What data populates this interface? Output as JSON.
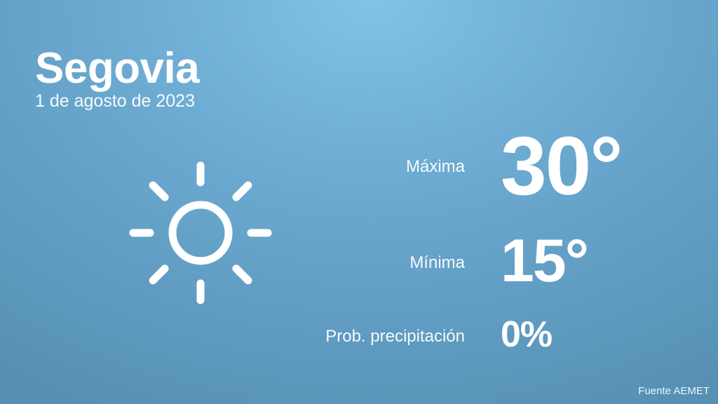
{
  "location": "Segovia",
  "date": "1 de agosto de 2023",
  "weather_icon": "sun-icon",
  "max": {
    "label": "Máxima",
    "value": "30°"
  },
  "min": {
    "label": "Mínima",
    "value": "15°"
  },
  "precip": {
    "label": "Prob. precipitación",
    "value": "0%"
  },
  "source": "Fuente AEMET",
  "colors": {
    "bg_top": "#82c2e6",
    "bg_bottom": "#5690b4",
    "text": "#ffffff"
  }
}
